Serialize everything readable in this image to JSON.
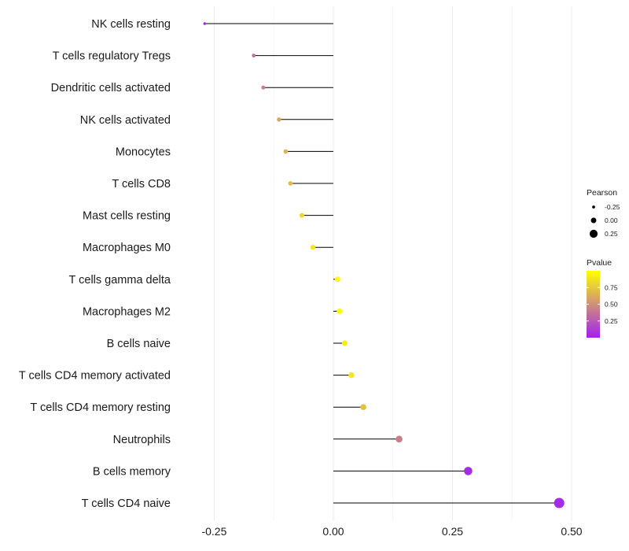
{
  "chart_data": {
    "type": "lollipop",
    "title": "",
    "xlabel": "",
    "ylabel": "",
    "xlim": [
      -0.32,
      0.505
    ],
    "xticks": [
      -0.25,
      0.0,
      0.25,
      0.5
    ],
    "xtick_labels": [
      "-0.25",
      "0.00",
      "0.25",
      "0.50"
    ],
    "minor_grid": [
      -0.125,
      0.125,
      0.375
    ],
    "grid": true,
    "baseline": 0,
    "categories": [
      "NK cells resting",
      "T cells regulatory  Tregs",
      "Dendritic cells activated",
      "NK cells activated",
      "Monocytes",
      "T cells CD8",
      "Mast cells resting",
      "Macrophages M0",
      "T cells gamma delta",
      "Macrophages M2",
      "B cells naive",
      "T cells CD4 memory activated",
      "T cells CD4 memory resting",
      "Neutrophils",
      "B cells memory",
      "T cells CD4 naive"
    ],
    "pearson": [
      -0.27,
      -0.167,
      -0.147,
      -0.114,
      -0.1,
      -0.09,
      -0.066,
      -0.043,
      0.009,
      0.013,
      0.024,
      0.038,
      0.063,
      0.138,
      0.283,
      0.474
    ],
    "pvalue": [
      0.02,
      0.35,
      0.42,
      0.6,
      0.65,
      0.7,
      0.82,
      0.88,
      0.99,
      0.99,
      0.93,
      0.89,
      0.72,
      0.42,
      0.05,
      0.05
    ],
    "legend": {
      "position": "right",
      "size_title": "Pearson",
      "size_breaks": [
        "-0.25",
        "0.00",
        "0.25"
      ],
      "size_break_values": [
        -0.25,
        0.0,
        0.25
      ],
      "color_title": "Pvalue",
      "color_breaks": [
        "0.75",
        "0.50",
        "0.25"
      ],
      "color_break_values": [
        0.75,
        0.5,
        0.25
      ],
      "color_range": [
        0.0,
        1.0
      ],
      "low_color": "#a020f0",
      "high_color": "#ffff00"
    },
    "colors": {
      "stem": "#000000",
      "grid": "#ebebeb",
      "text": "#1a1a1a"
    }
  }
}
